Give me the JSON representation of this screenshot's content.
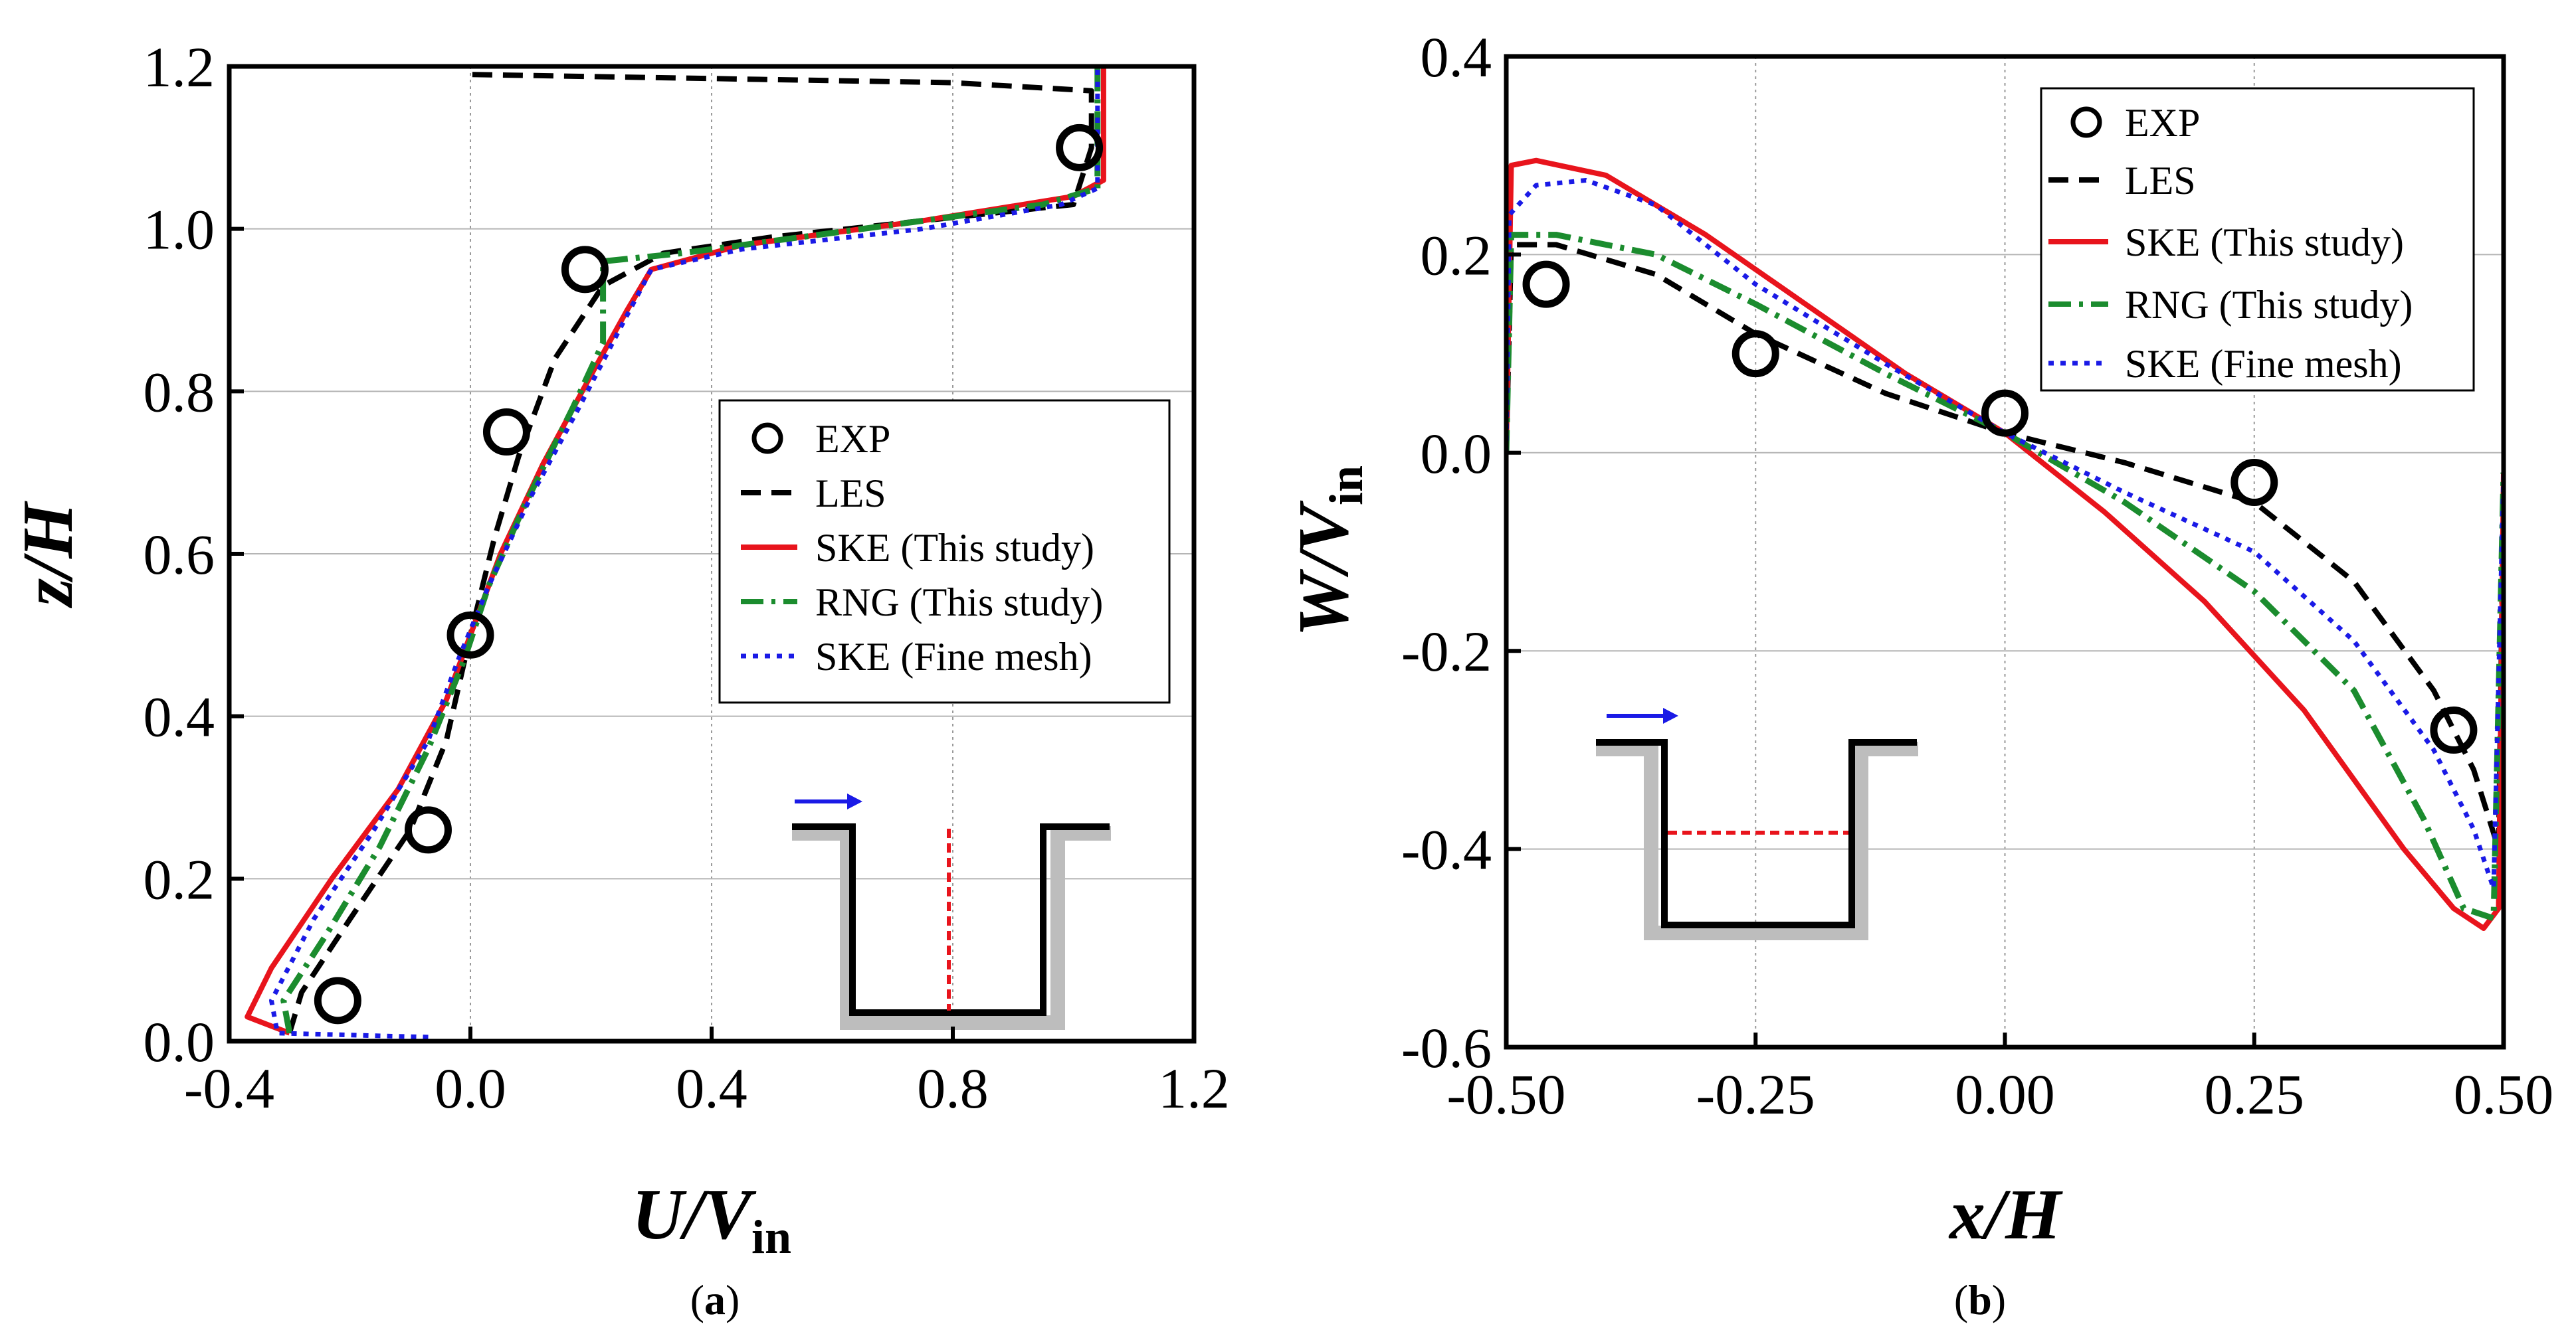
{
  "chart_data": [
    {
      "id": "a",
      "type": "line",
      "panel_label": "a",
      "xlabel": "U/V",
      "xlabel_sub": "in",
      "ylabel": "z/H",
      "xlim": [
        -0.4,
        1.2
      ],
      "ylim": [
        0.0,
        1.2
      ],
      "xticks": [
        "-0.4",
        "0.0",
        "0.4",
        "0.8",
        "1.2"
      ],
      "xtick_values": [
        -0.4,
        0.0,
        0.4,
        0.8,
        1.2
      ],
      "yticks": [
        "0.0",
        "0.2",
        "0.4",
        "0.6",
        "0.8",
        "1.0",
        "1.2"
      ],
      "ytick_values": [
        0.0,
        0.2,
        0.4,
        0.6,
        0.8,
        1.0,
        1.2
      ],
      "grid": true,
      "legend_position": "center-right",
      "legend": [
        "EXP",
        "LES",
        "SKE (This study)",
        "RNG (This study)",
        "SKE (Fine mesh)"
      ],
      "series": [
        {
          "name": "EXP",
          "style": "circle",
          "color": "#000000",
          "points": [
            [
              -0.22,
              0.05
            ],
            [
              -0.07,
              0.26
            ],
            [
              0.0,
              0.5
            ],
            [
              0.06,
              0.75
            ],
            [
              0.19,
              0.95
            ],
            [
              1.01,
              1.1
            ]
          ]
        },
        {
          "name": "LES",
          "style": "dash",
          "color": "#000000",
          "points": [
            [
              -0.3,
              0.01
            ],
            [
              -0.28,
              0.06
            ],
            [
              -0.2,
              0.15
            ],
            [
              -0.1,
              0.26
            ],
            [
              -0.04,
              0.37
            ],
            [
              0.0,
              0.5
            ],
            [
              0.04,
              0.62
            ],
            [
              0.08,
              0.72
            ],
            [
              0.14,
              0.84
            ],
            [
              0.22,
              0.93
            ],
            [
              0.32,
              0.97
            ],
            [
              0.5,
              0.99
            ],
            [
              0.75,
              1.01
            ],
            [
              1.0,
              1.03
            ],
            [
              1.03,
              1.1
            ],
            [
              1.03,
              1.17
            ],
            [
              0.8,
              1.18
            ],
            [
              0.4,
              1.185
            ],
            [
              0.0,
              1.19
            ]
          ]
        },
        {
          "name": "SKE (This study)",
          "style": "solid",
          "color": "#e8141c",
          "points": [
            [
              -0.3,
              0.01
            ],
            [
              -0.37,
              0.03
            ],
            [
              -0.33,
              0.09
            ],
            [
              -0.23,
              0.2
            ],
            [
              -0.12,
              0.31
            ],
            [
              -0.04,
              0.42
            ],
            [
              0.0,
              0.5
            ],
            [
              0.05,
              0.6
            ],
            [
              0.12,
              0.71
            ],
            [
              0.2,
              0.82
            ],
            [
              0.26,
              0.9
            ],
            [
              0.3,
              0.95
            ],
            [
              0.45,
              0.98
            ],
            [
              0.75,
              1.01
            ],
            [
              1.0,
              1.04
            ],
            [
              1.05,
              1.06
            ],
            [
              1.05,
              1.2
            ]
          ]
        },
        {
          "name": "RNG (This study)",
          "style": "dashdot",
          "color": "#1b8c2e",
          "points": [
            [
              -0.3,
              0.01
            ],
            [
              -0.31,
              0.05
            ],
            [
              -0.24,
              0.13
            ],
            [
              -0.15,
              0.24
            ],
            [
              -0.07,
              0.36
            ],
            [
              -0.01,
              0.47
            ],
            [
              0.03,
              0.56
            ],
            [
              0.09,
              0.66
            ],
            [
              0.17,
              0.78
            ],
            [
              0.22,
              0.86
            ],
            [
              0.22,
              0.96
            ],
            [
              0.35,
              0.97
            ],
            [
              0.65,
              1.0
            ],
            [
              0.95,
              1.03
            ],
            [
              1.04,
              1.05
            ],
            [
              1.04,
              1.2
            ]
          ]
        },
        {
          "name": "SKE (Fine mesh)",
          "style": "dot",
          "color": "#1a1ae6",
          "points": [
            [
              -0.07,
              0.005
            ],
            [
              -0.32,
              0.01
            ],
            [
              -0.33,
              0.05
            ],
            [
              -0.26,
              0.15
            ],
            [
              -0.16,
              0.26
            ],
            [
              -0.07,
              0.37
            ],
            [
              -0.02,
              0.47
            ],
            [
              0.03,
              0.56
            ],
            [
              0.1,
              0.67
            ],
            [
              0.18,
              0.78
            ],
            [
              0.25,
              0.88
            ],
            [
              0.3,
              0.95
            ],
            [
              0.45,
              0.975
            ],
            [
              0.75,
              1.0
            ],
            [
              0.98,
              1.03
            ],
            [
              1.04,
              1.05
            ],
            [
              1.04,
              1.2
            ]
          ]
        }
      ]
    },
    {
      "id": "b",
      "type": "line",
      "panel_label": "b",
      "xlabel": "x/H",
      "ylabel": "W/V",
      "ylabel_sub": "in",
      "xlim": [
        -0.5,
        0.5
      ],
      "ylim": [
        -0.6,
        0.4
      ],
      "xticks": [
        "-0.50",
        "-0.25",
        "0.00",
        "0.25",
        "0.50"
      ],
      "xtick_values": [
        -0.5,
        -0.25,
        0.0,
        0.25,
        0.5
      ],
      "yticks": [
        "-0.6",
        "-0.4",
        "-0.2",
        "0.0",
        "0.2",
        "0.4"
      ],
      "ytick_values": [
        -0.6,
        -0.4,
        -0.2,
        0.0,
        0.2,
        0.4
      ],
      "grid": true,
      "legend_position": "top-right",
      "legend": [
        "EXP",
        "LES",
        "SKE (This study)",
        "RNG (This study)",
        "SKE (Fine mesh)"
      ],
      "series": [
        {
          "name": "EXP",
          "style": "circle",
          "color": "#000000",
          "points": [
            [
              -0.46,
              0.17
            ],
            [
              -0.25,
              0.1
            ],
            [
              0.0,
              0.04
            ],
            [
              0.25,
              -0.03
            ],
            [
              0.45,
              -0.28
            ]
          ]
        },
        {
          "name": "LES",
          "style": "dash",
          "color": "#000000",
          "points": [
            [
              -0.5,
              0.0
            ],
            [
              -0.495,
              0.21
            ],
            [
              -0.45,
              0.21
            ],
            [
              -0.35,
              0.18
            ],
            [
              -0.25,
              0.12
            ],
            [
              -0.12,
              0.06
            ],
            [
              0.0,
              0.02
            ],
            [
              0.12,
              -0.01
            ],
            [
              0.25,
              -0.05
            ],
            [
              0.35,
              -0.13
            ],
            [
              0.43,
              -0.24
            ],
            [
              0.47,
              -0.32
            ],
            [
              0.495,
              -0.4
            ],
            [
              0.5,
              -0.03
            ]
          ]
        },
        {
          "name": "SKE (This study)",
          "style": "solid",
          "color": "#e8141c",
          "points": [
            [
              -0.5,
              0.0
            ],
            [
              -0.495,
              0.29
            ],
            [
              -0.47,
              0.295
            ],
            [
              -0.4,
              0.28
            ],
            [
              -0.3,
              0.22
            ],
            [
              -0.2,
              0.15
            ],
            [
              -0.1,
              0.08
            ],
            [
              0.0,
              0.02
            ],
            [
              0.1,
              -0.06
            ],
            [
              0.2,
              -0.15
            ],
            [
              0.3,
              -0.26
            ],
            [
              0.4,
              -0.4
            ],
            [
              0.45,
              -0.46
            ],
            [
              0.48,
              -0.48
            ],
            [
              0.495,
              -0.46
            ],
            [
              0.5,
              -0.02
            ]
          ]
        },
        {
          "name": "RNG (This study)",
          "style": "dashdot",
          "color": "#1b8c2e",
          "points": [
            [
              -0.5,
              0.0
            ],
            [
              -0.495,
              0.22
            ],
            [
              -0.45,
              0.22
            ],
            [
              -0.35,
              0.2
            ],
            [
              -0.25,
              0.15
            ],
            [
              -0.12,
              0.08
            ],
            [
              0.0,
              0.02
            ],
            [
              0.12,
              -0.05
            ],
            [
              0.25,
              -0.14
            ],
            [
              0.35,
              -0.24
            ],
            [
              0.42,
              -0.37
            ],
            [
              0.46,
              -0.46
            ],
            [
              0.49,
              -0.47
            ],
            [
              0.5,
              -0.02
            ]
          ]
        },
        {
          "name": "SKE (Fine mesh)",
          "style": "dot",
          "color": "#1a1ae6",
          "points": [
            [
              -0.5,
              0.0
            ],
            [
              -0.497,
              0.24
            ],
            [
              -0.47,
              0.27
            ],
            [
              -0.42,
              0.275
            ],
            [
              -0.35,
              0.25
            ],
            [
              -0.25,
              0.17
            ],
            [
              -0.12,
              0.09
            ],
            [
              0.0,
              0.02
            ],
            [
              0.12,
              -0.04
            ],
            [
              0.25,
              -0.1
            ],
            [
              0.35,
              -0.19
            ],
            [
              0.43,
              -0.3
            ],
            [
              0.47,
              -0.38
            ],
            [
              0.49,
              -0.44
            ],
            [
              0.5,
              -0.02
            ]
          ]
        }
      ]
    }
  ]
}
